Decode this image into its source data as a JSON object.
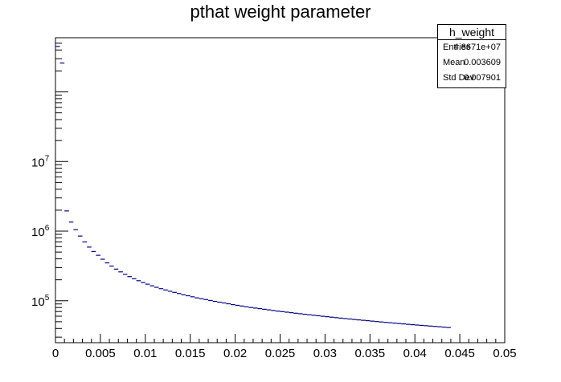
{
  "chart_data": {
    "type": "histogram",
    "title": "pthat weight parameter",
    "x_axis": {
      "range": [
        0,
        0.05
      ],
      "tick_labels": [
        "0",
        "0.005",
        "0.01",
        "0.015",
        "0.02",
        "0.025",
        "0.03",
        "0.035",
        "0.04",
        "0.045",
        "0.05"
      ]
    },
    "y_axis": {
      "scale": "log",
      "range": [
        25000,
        600000000
      ],
      "tick_labels": [
        {
          "base": "10",
          "exp": "5",
          "value": 100000
        },
        {
          "base": "10",
          "exp": "6",
          "value": 1000000
        },
        {
          "base": "10",
          "exp": "7",
          "value": 10000000
        }
      ]
    },
    "bin_width": 0.0005,
    "bin_start": 0.0,
    "values": [
      450000000,
      260000000,
      1950000,
      1350000,
      1050000,
      850000,
      700000,
      590000,
      510000,
      450000,
      395000,
      350000,
      315000,
      285000,
      260000,
      240000,
      222000,
      207000,
      194000,
      183000,
      173000,
      164000,
      156000,
      149000,
      143000,
      137000,
      132000,
      127000,
      122000,
      118000,
      114000,
      110000,
      107000,
      104000,
      101000,
      98000,
      95500,
      93000,
      90500,
      88000,
      86000,
      84000,
      82000,
      80000,
      78500,
      77000,
      75500,
      74000,
      72500,
      71000,
      69800,
      68600,
      67400,
      66200,
      65100,
      64000,
      62900,
      61900,
      60900,
      59900,
      59000,
      58100,
      57200,
      56300,
      55500,
      54700,
      53900,
      53100,
      52400,
      51700,
      51000,
      50300,
      49600,
      48900,
      48300,
      47700,
      47100,
      46500,
      45900,
      45300,
      44800,
      44300,
      43800,
      43300,
      42800,
      42300,
      41800,
      41300
    ],
    "color": "#000080",
    "grid": false,
    "stats": {
      "name": "h_weight",
      "rows": [
        {
          "label": "Entries",
          "value": "4.8671e+07"
        },
        {
          "label": "Mean",
          "value": "0.003609"
        },
        {
          "label": "Std Dev",
          "value": "0.007901"
        }
      ]
    }
  }
}
